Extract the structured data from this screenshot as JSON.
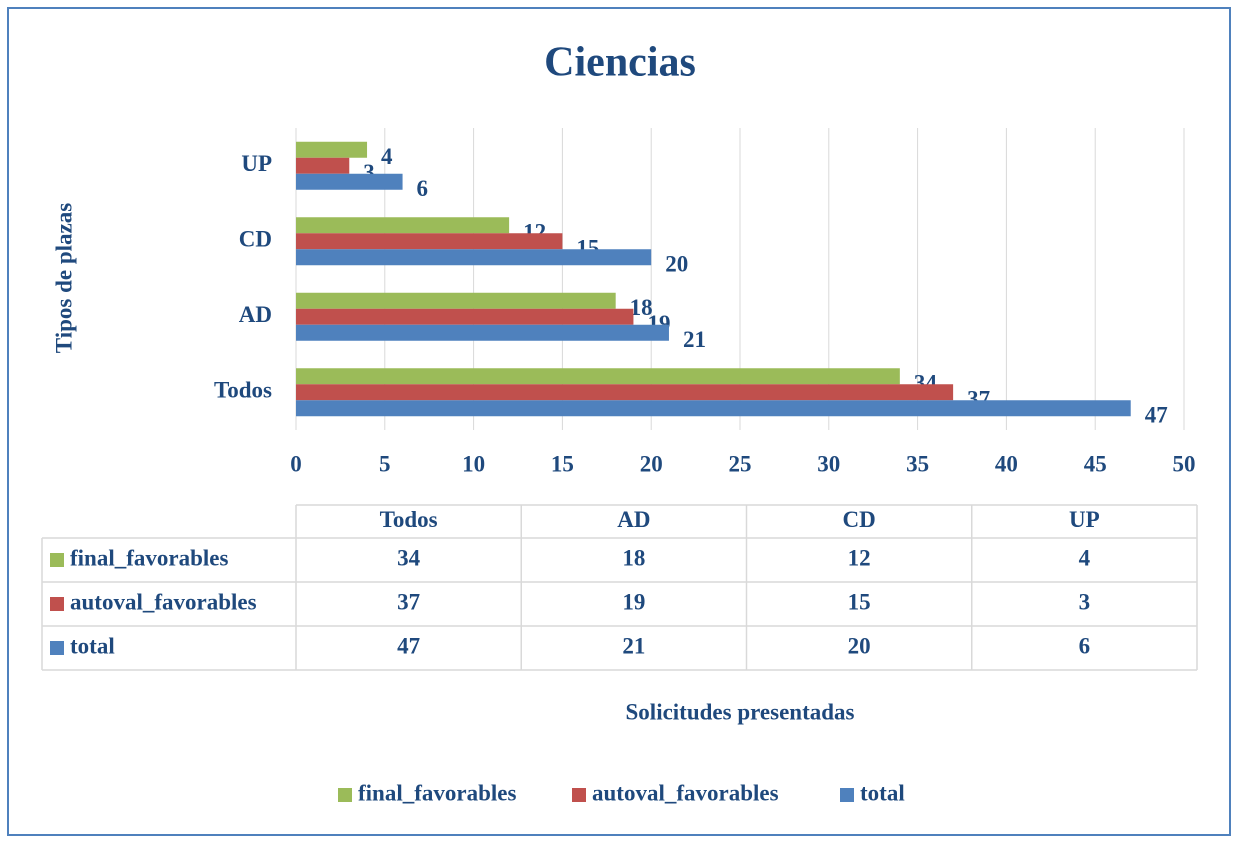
{
  "chart_data": {
    "type": "bar",
    "orientation": "horizontal",
    "title": "Ciencias",
    "ylabel": "Tipos de plazas",
    "xlabel": "Solicitudes presentadas",
    "categories": [
      "Todos",
      "AD",
      "CD",
      "UP"
    ],
    "series": [
      {
        "name": "final_favorables",
        "color": "#9bbb59",
        "values": [
          34,
          18,
          12,
          4
        ]
      },
      {
        "name": "autoval_favorables",
        "color": "#c0504d",
        "values": [
          37,
          19,
          15,
          3
        ]
      },
      {
        "name": "total",
        "color": "#4f81bd",
        "values": [
          47,
          21,
          20,
          6
        ]
      }
    ],
    "xlim": [
      0,
      50
    ],
    "xticks": [
      0,
      5,
      10,
      15,
      20,
      25,
      30,
      35,
      40,
      45,
      50
    ],
    "grid": true,
    "data_table": true,
    "legend": "bottom"
  }
}
